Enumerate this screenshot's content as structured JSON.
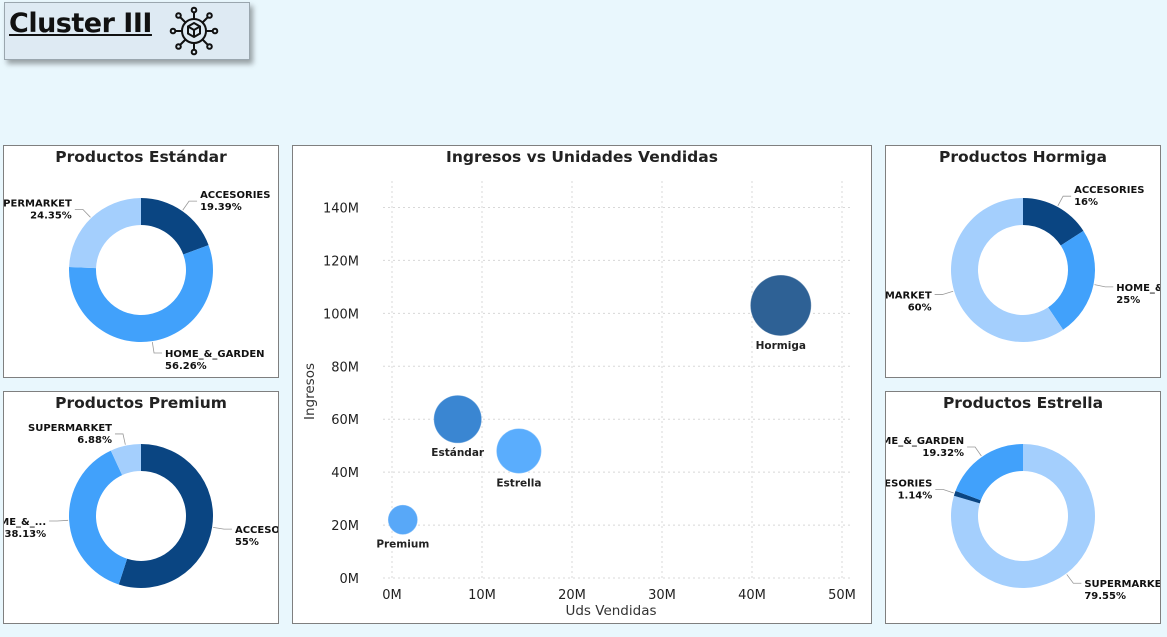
{
  "header": {
    "title": "Cluster III",
    "icon": "cube-network-icon"
  },
  "colors": {
    "dark": "#0a4582",
    "mid": "#41a1fb",
    "light": "#a4cffd"
  },
  "chart_data": [
    {
      "id": "estandar",
      "type": "pie",
      "title": "Productos Estándar",
      "slices": [
        {
          "name": "ACCESORIES",
          "value": 19.39,
          "label": "19.39%",
          "color": "#0a4582"
        },
        {
          "name": "HOME_&_GARDEN",
          "value": 56.26,
          "label": "56.26%",
          "color": "#41a1fb"
        },
        {
          "name": "SUPERMARKET",
          "value": 24.35,
          "label": "24.35%",
          "color": "#a4cffd"
        }
      ]
    },
    {
      "id": "premium",
      "type": "pie",
      "title": "Productos Premium",
      "slices": [
        {
          "name": "ACCESORIES",
          "value": 55,
          "label": "55%",
          "color": "#0a4582"
        },
        {
          "name": "HOME_&_...",
          "value": 38.13,
          "label": "38.13%",
          "color": "#41a1fb"
        },
        {
          "name": "SUPERMARKET",
          "value": 6.88,
          "label": "6.88%",
          "color": "#a4cffd"
        }
      ]
    },
    {
      "id": "hormiga",
      "type": "pie",
      "title": "Productos Hormiga",
      "slices": [
        {
          "name": "ACCESORIES",
          "value": 16,
          "label": "16%",
          "color": "#0a4582"
        },
        {
          "name": "HOME_&_GARDEN",
          "value": 25,
          "label": "25%",
          "color": "#41a1fb"
        },
        {
          "name": "SUPERMARKET",
          "value": 60,
          "label": "60%",
          "color": "#a4cffd"
        }
      ]
    },
    {
      "id": "estrella",
      "type": "pie",
      "title": "Productos Estrella",
      "slices": [
        {
          "name": "SUPERMARKET",
          "value": 79.55,
          "label": "79.55%",
          "color": "#a4cffd"
        },
        {
          "name": "ACCESORIES",
          "value": 1.14,
          "label": "1.14%",
          "color": "#0a4582"
        },
        {
          "name": "HOME_&_GARDEN",
          "value": 19.32,
          "label": "19.32%",
          "color": "#41a1fb"
        }
      ]
    },
    {
      "id": "scatter",
      "type": "scatter",
      "title": "Ingresos vs Unidades Vendidas",
      "xlabel": "Uds Vendidas",
      "ylabel": "Ingresos",
      "xlim": [
        -1,
        51
      ],
      "ylim": [
        0,
        150
      ],
      "xticks": [
        0,
        10,
        20,
        30,
        40,
        50
      ],
      "yticks": [
        0,
        20,
        40,
        60,
        80,
        100,
        120,
        140
      ],
      "tick_suffix": "M",
      "grid": true,
      "points": [
        {
          "name": "Premium",
          "x": 1.2,
          "y": 22,
          "size": 1,
          "color": "#58a8f8"
        },
        {
          "name": "Estándar",
          "x": 7.3,
          "y": 60,
          "size": 2.6,
          "color": "#3a86d2"
        },
        {
          "name": "Estrella",
          "x": 14.1,
          "y": 48,
          "size": 2.3,
          "color": "#5aadfd"
        },
        {
          "name": "Hormiga",
          "x": 43.2,
          "y": 103,
          "size": 4.2,
          "color": "#2e6195"
        }
      ]
    }
  ]
}
